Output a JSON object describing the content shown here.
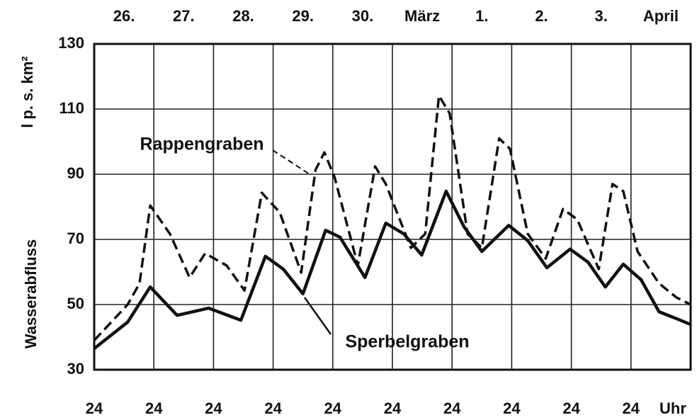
{
  "chart_data": {
    "type": "line",
    "y_label": "Wasserabfluss",
    "y_unit_label": "l p. s. km²",
    "x_unit_label": "Uhr",
    "xlim": [
      0,
      10
    ],
    "xticks": [
      {
        "value": 0,
        "label": "24"
      },
      {
        "value": 1,
        "label": "24"
      },
      {
        "value": 2,
        "label": "24"
      },
      {
        "value": 3,
        "label": "24"
      },
      {
        "value": 4,
        "label": "24"
      },
      {
        "value": 5,
        "label": "24"
      },
      {
        "value": 6,
        "label": "24"
      },
      {
        "value": 7,
        "label": "24"
      },
      {
        "value": 8,
        "label": "24"
      },
      {
        "value": 9,
        "label": "24"
      }
    ],
    "x2ticks": [
      {
        "value": 0.5,
        "label": "26."
      },
      {
        "value": 1.5,
        "label": "27."
      },
      {
        "value": 2.5,
        "label": "28."
      },
      {
        "value": 3.5,
        "label": "29."
      },
      {
        "value": 4.5,
        "label": "30."
      },
      {
        "value": 5.5,
        "label": "März"
      },
      {
        "value": 6.5,
        "label": "1."
      },
      {
        "value": 7.5,
        "label": "2."
      },
      {
        "value": 8.5,
        "label": "3."
      },
      {
        "value": 9.5,
        "label": "April"
      }
    ],
    "ylim": [
      30,
      130
    ],
    "yticks": [
      30,
      50,
      70,
      90,
      110,
      130
    ],
    "grid": true,
    "series": [
      {
        "name": "Rappengraben",
        "color": "#111111",
        "dash": true,
        "x": [
          0,
          0.56,
          0.76,
          0.94,
          1.27,
          1.6,
          1.86,
          2.22,
          2.52,
          2.81,
          3.11,
          3.47,
          3.71,
          3.86,
          4.03,
          4.42,
          4.71,
          4.89,
          5.31,
          5.55,
          5.78,
          5.96,
          6.26,
          6.5,
          6.79,
          6.97,
          7.27,
          7.57,
          7.86,
          8.1,
          8.46,
          8.69,
          8.87,
          9.11,
          9.47,
          9.76,
          10
        ],
        "values": [
          39,
          50,
          56.5,
          80.4,
          71.7,
          58.3,
          65.7,
          62,
          54.3,
          84.3,
          78.3,
          59.8,
          91.3,
          96.7,
          89.1,
          62,
          92.4,
          87,
          67.4,
          71.7,
          114.1,
          108.7,
          71.7,
          67.4,
          101,
          97.8,
          71.7,
          64.1,
          79.3,
          76.1,
          60.9,
          87,
          84.8,
          66.3,
          56.5,
          52.2,
          50
        ]
      },
      {
        "name": "Sperbelgraben",
        "color": "#111111",
        "dash": false,
        "x": [
          0,
          0.56,
          0.94,
          1.39,
          1.92,
          2.46,
          2.87,
          3.17,
          3.5,
          3.88,
          4.12,
          4.54,
          4.89,
          5.19,
          5.49,
          5.9,
          6.2,
          6.5,
          6.95,
          7.27,
          7.59,
          7.98,
          8.28,
          8.57,
          8.87,
          9.17,
          9.47,
          9.76,
          10
        ],
        "values": [
          36.5,
          44.6,
          55.4,
          46.7,
          48.9,
          45.2,
          64.8,
          60.9,
          53.3,
          72.8,
          70.7,
          58.3,
          75,
          71.7,
          65.2,
          84.8,
          73.9,
          66.3,
          74.3,
          69.6,
          61.3,
          67,
          63,
          55.4,
          62.4,
          57.6,
          47.8,
          45.7,
          43.9
        ]
      }
    ]
  }
}
